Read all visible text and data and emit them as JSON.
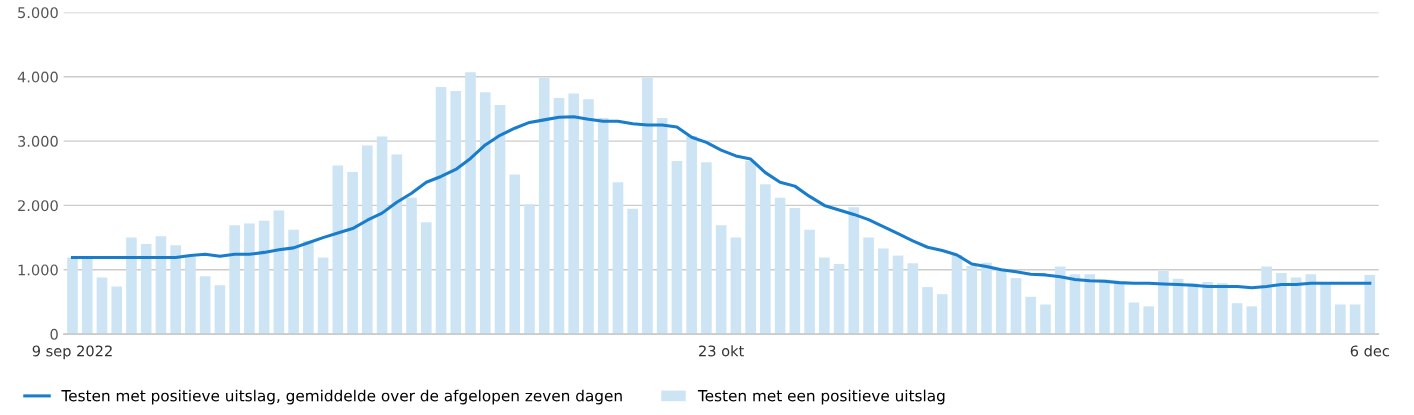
{
  "chart_data": {
    "type": "bar",
    "categories": [
      "9 sep 2022",
      null,
      null,
      null,
      null,
      null,
      null,
      null,
      null,
      null,
      null,
      null,
      null,
      null,
      null,
      null,
      null,
      null,
      null,
      null,
      null,
      null,
      null,
      null,
      null,
      null,
      null,
      null,
      null,
      null,
      null,
      null,
      null,
      null,
      null,
      null,
      null,
      null,
      null,
      null,
      null,
      null,
      null,
      null,
      "23 okt",
      null,
      null,
      null,
      null,
      null,
      null,
      null,
      null,
      null,
      null,
      null,
      null,
      null,
      null,
      null,
      null,
      null,
      null,
      null,
      null,
      null,
      null,
      null,
      null,
      null,
      null,
      null,
      null,
      null,
      null,
      null,
      null,
      null,
      null,
      null,
      null,
      null,
      null,
      null,
      null,
      null,
      null,
      null,
      "6 dec"
    ],
    "series": [
      {
        "name": "Testen met positieve uitslag, gemiddelde over de afgelopen zeven dagen",
        "type": "line",
        "color": "#1a7dcc",
        "values": [
          1190,
          1190,
          1190,
          1190,
          1190,
          1190,
          1190,
          1190,
          1220,
          1240,
          1210,
          1240,
          1240,
          1270,
          1310,
          1340,
          1420,
          1500,
          1570,
          1640,
          1770,
          1880,
          2050,
          2190,
          2360,
          2450,
          2560,
          2730,
          2940,
          3090,
          3200,
          3290,
          3330,
          3370,
          3380,
          3340,
          3310,
          3310,
          3270,
          3250,
          3250,
          3220,
          3060,
          2980,
          2860,
          2770,
          2720,
          2510,
          2360,
          2300,
          2140,
          2000,
          1930,
          1860,
          1780,
          1670,
          1560,
          1450,
          1350,
          1300,
          1230,
          1090,
          1050,
          1000,
          970,
          930,
          920,
          890,
          850,
          830,
          820,
          800,
          790,
          790,
          780,
          770,
          760,
          740,
          740,
          740,
          720,
          740,
          770,
          770,
          790,
          790,
          790,
          790,
          790
        ]
      },
      {
        "name": "Testen met een positieve uitslag",
        "color": "#cce4f4",
        "values": [
          1190,
          1190,
          880,
          740,
          1500,
          1400,
          1520,
          1380,
          1200,
          900,
          760,
          1690,
          1720,
          1760,
          1920,
          1620,
          1450,
          1190,
          2620,
          2520,
          2930,
          3070,
          2790,
          2120,
          1740,
          3840,
          3780,
          4070,
          3760,
          3560,
          2480,
          2020,
          3980,
          3670,
          3740,
          3650,
          3360,
          2360,
          1950,
          3980,
          3360,
          2690,
          3080,
          2670,
          1690,
          1500,
          2690,
          2330,
          2120,
          1960,
          1620,
          1190,
          1090,
          1970,
          1500,
          1330,
          1220,
          1100,
          730,
          620,
          1230,
          1060,
          1110,
          1000,
          870,
          580,
          460,
          1050,
          930,
          930,
          850,
          790,
          490,
          430,
          980,
          860,
          790,
          810,
          790,
          480,
          430,
          1050,
          950,
          880,
          930,
          790,
          460,
          460,
          920
        ]
      }
    ],
    "ylim": [
      0,
      5000
    ],
    "yticks": [
      {
        "value": 0,
        "label": "0"
      },
      {
        "value": 1000,
        "label": "1.000"
      },
      {
        "value": 2000,
        "label": "2.000"
      },
      {
        "value": 3000,
        "label": "3.000"
      },
      {
        "value": 4000,
        "label": "4.000"
      },
      {
        "value": 5000,
        "label": "5.000"
      }
    ],
    "grid": "y",
    "legend": "bottom left"
  }
}
